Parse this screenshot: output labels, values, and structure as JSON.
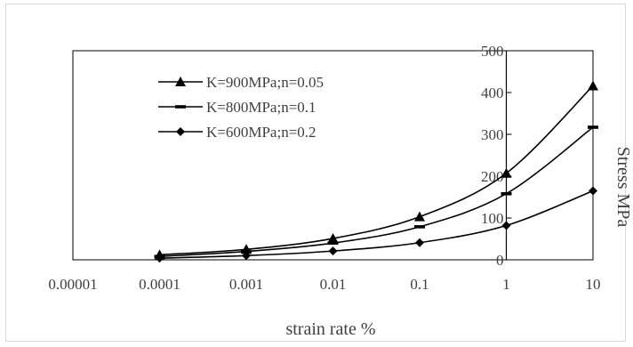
{
  "chart_data": {
    "type": "line",
    "x_scale": "log",
    "x": [
      0.0001,
      0.001,
      0.01,
      0.1,
      1,
      10
    ],
    "x_tick_labels": [
      "0.00001",
      "0.0001",
      "0.001",
      "0.01",
      "0.1",
      "1",
      "10"
    ],
    "x_tick_values": [
      1e-05,
      0.0001,
      0.001,
      0.01,
      0.1,
      1,
      10
    ],
    "xlim": [
      1e-05,
      10
    ],
    "ylim": [
      0,
      500
    ],
    "y_ticks": [
      0,
      100,
      200,
      300,
      400,
      500
    ],
    "y_tick_labels": [
      "0",
      "100",
      "200",
      "300",
      "400",
      "500"
    ],
    "y_axis_position": "at x = 1",
    "xlabel": "strain rate %",
    "ylabel": "Stress MPa",
    "title": "",
    "legend_placement": "top-left",
    "grid": false,
    "series": [
      {
        "name": "K=900MPa;n=0.05",
        "marker": "triangle",
        "values": [
          12,
          25,
          51,
          103,
          207,
          416
        ]
      },
      {
        "name": "K=800MPa;n=0.1",
        "marker": "dash",
        "values": [
          8,
          20,
          40,
          79,
          158,
          317
        ]
      },
      {
        "name": "K=600MPa;n=0.2",
        "marker": "diamond",
        "values": [
          4,
          10,
          21,
          41,
          82,
          165
        ]
      }
    ],
    "colors": {
      "line": "#000000",
      "axis": "#000000",
      "text": "#404040"
    }
  }
}
